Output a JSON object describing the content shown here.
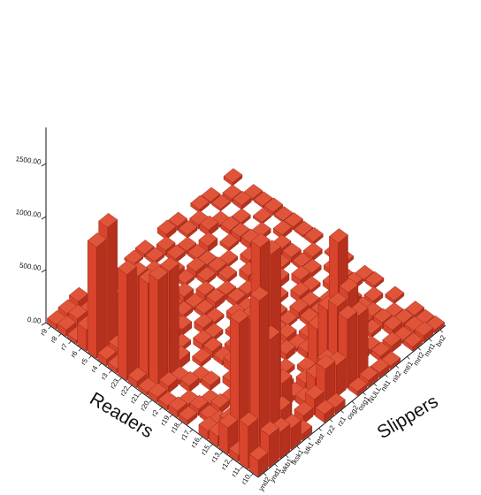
{
  "chart_data": {
    "type": "bar3d",
    "xlabel": "Readers",
    "ylabel": "Slippers",
    "zlim": [
      0,
      2000
    ],
    "z_ticks": [
      "0.00",
      "500.00",
      "1000.00",
      "1500.00"
    ],
    "readers": [
      "r9",
      "r8",
      "r7",
      "r6",
      "r5",
      "r4",
      "r3",
      "r23",
      "r22",
      "r21",
      "r20",
      "r2",
      "r19",
      "r18",
      "r17",
      "r16",
      "r15",
      "r13",
      "r12",
      "r11",
      "r10"
    ],
    "slippers": [
      "ynd2",
      "ynd1",
      "wkb1",
      "tksk1",
      "stk1",
      "test",
      "rz2",
      "rz1",
      "osg2",
      "osg1",
      "NULL",
      "nit1",
      "nit2",
      "mti1",
      "mrt2",
      "mrt1",
      "bn2"
    ],
    "bar_color": "#cc3a24",
    "values": [
      [
        40,
        60,
        90,
        0,
        30,
        60,
        0,
        20,
        30,
        0,
        50,
        40,
        0,
        30,
        20,
        0,
        30
      ],
      [
        60,
        80,
        40,
        20,
        0,
        40,
        60,
        0,
        30,
        50,
        0,
        30,
        40,
        0,
        20,
        30,
        0
      ],
      [
        30,
        0,
        60,
        90,
        40,
        0,
        30,
        60,
        0,
        40,
        30,
        0,
        60,
        20,
        0,
        40,
        20
      ],
      [
        200,
        120,
        0,
        50,
        80,
        60,
        0,
        40,
        50,
        0,
        30,
        60,
        0,
        40,
        30,
        0,
        20
      ],
      [
        1050,
        1150,
        300,
        0,
        60,
        40,
        80,
        0,
        30,
        60,
        40,
        0,
        30,
        50,
        0,
        20,
        30
      ],
      [
        60,
        80,
        40,
        60,
        0,
        50,
        30,
        60,
        0,
        40,
        50,
        30,
        0,
        60,
        40,
        0,
        20
      ],
      [
        40,
        60,
        0,
        30,
        50,
        0,
        40,
        30,
        60,
        0,
        40,
        0,
        50,
        30,
        0,
        40,
        30
      ],
      [
        1000,
        900,
        300,
        0,
        80,
        60,
        0,
        40,
        60,
        50,
        0,
        60,
        0,
        40,
        60,
        0,
        20
      ],
      [
        60,
        900,
        700,
        0,
        40,
        0,
        60,
        30,
        0,
        50,
        40,
        60,
        0,
        30,
        50,
        0,
        30
      ],
      [
        30,
        1000,
        1000,
        80,
        0,
        60,
        40,
        0,
        60,
        30,
        0,
        40,
        60,
        0,
        30,
        40,
        0
      ],
      [
        50,
        70,
        40,
        0,
        40,
        60,
        0,
        40,
        30,
        0,
        60,
        40,
        0,
        60,
        40,
        0,
        20
      ],
      [
        40,
        0,
        60,
        30,
        0,
        40,
        60,
        0,
        50,
        30,
        40,
        0,
        60,
        30,
        0,
        40,
        30
      ],
      [
        60,
        40,
        0,
        50,
        0,
        80,
        40,
        60,
        0,
        40,
        30,
        60,
        40,
        0,
        50,
        30,
        0
      ],
      [
        40,
        60,
        30,
        0,
        60,
        40,
        0,
        50,
        30,
        60,
        0,
        40,
        30,
        60,
        0,
        40,
        20
      ],
      [
        0,
        40,
        60,
        40,
        0,
        60,
        40,
        0,
        60,
        30,
        50,
        0,
        40,
        60,
        40,
        0,
        30
      ],
      [
        80,
        60,
        0,
        30,
        60,
        0,
        50,
        40,
        0,
        60,
        40,
        30,
        0,
        50,
        30,
        40,
        0
      ],
      [
        100,
        150,
        200,
        0,
        50,
        40,
        60,
        0,
        40,
        350,
        500,
        0,
        60,
        40,
        50,
        0,
        30
      ],
      [
        250,
        1150,
        1100,
        300,
        0,
        60,
        40,
        80,
        50,
        600,
        1150,
        500,
        0,
        40,
        60,
        30,
        0
      ],
      [
        60,
        200,
        1850,
        1700,
        400,
        0,
        60,
        200,
        250,
        700,
        750,
        60,
        40,
        0,
        60,
        40,
        30
      ],
      [
        400,
        1500,
        1050,
        300,
        0,
        80,
        150,
        350,
        300,
        650,
        600,
        0,
        50,
        60,
        30,
        40,
        20
      ],
      [
        150,
        300,
        250,
        200,
        60,
        0,
        80,
        60,
        0,
        40,
        60,
        50,
        30,
        0,
        40,
        60,
        30
      ]
    ]
  }
}
